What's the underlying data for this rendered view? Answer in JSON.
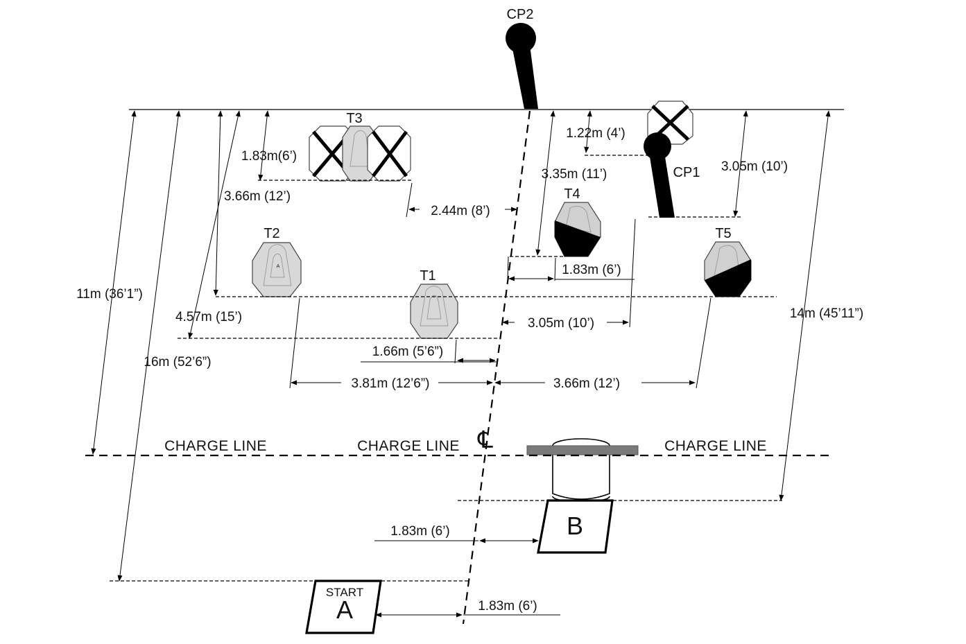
{
  "targets": {
    "cp2": "CP2",
    "cp1": "CP1",
    "t1": "T1",
    "t2": "T2",
    "t3": "T3",
    "t4": "T4",
    "t5": "T5"
  },
  "dimensions": {
    "d_183_t3": "1.83m(6’)",
    "d_366_12": "3.66m (12’)",
    "d_244_8": "2.44m (8’)",
    "d_122_4": "1.22m (4’)",
    "d_335_11": "3.35m (11’)",
    "d_305_10_top": "3.05m (10’)",
    "d_183_t4": "1.83m (6’)",
    "d_305_10_mid": "3.05m (10’)",
    "d_11m": "11m (36’1”)",
    "d_457_15": "4.57m (15’)",
    "d_166": "1.66m (5’6”)",
    "d_16m": "16m (52’6”)",
    "d_381": "3.81m (12’6”)",
    "d_366_bottom": "3.66m (12’)",
    "d_14m": "14m (45’11”)",
    "d_183_b": "1.83m (6’)",
    "d_183_a": "1.83m (6’)"
  },
  "charge_line": {
    "left": "CHARGE LINE",
    "middle": "CHARGE LINE",
    "right": "CHARGE LINE"
  },
  "centerline_symbol": "℄",
  "boxes": {
    "start_caption": "START",
    "a_letter": "A",
    "b_letter": "B"
  }
}
